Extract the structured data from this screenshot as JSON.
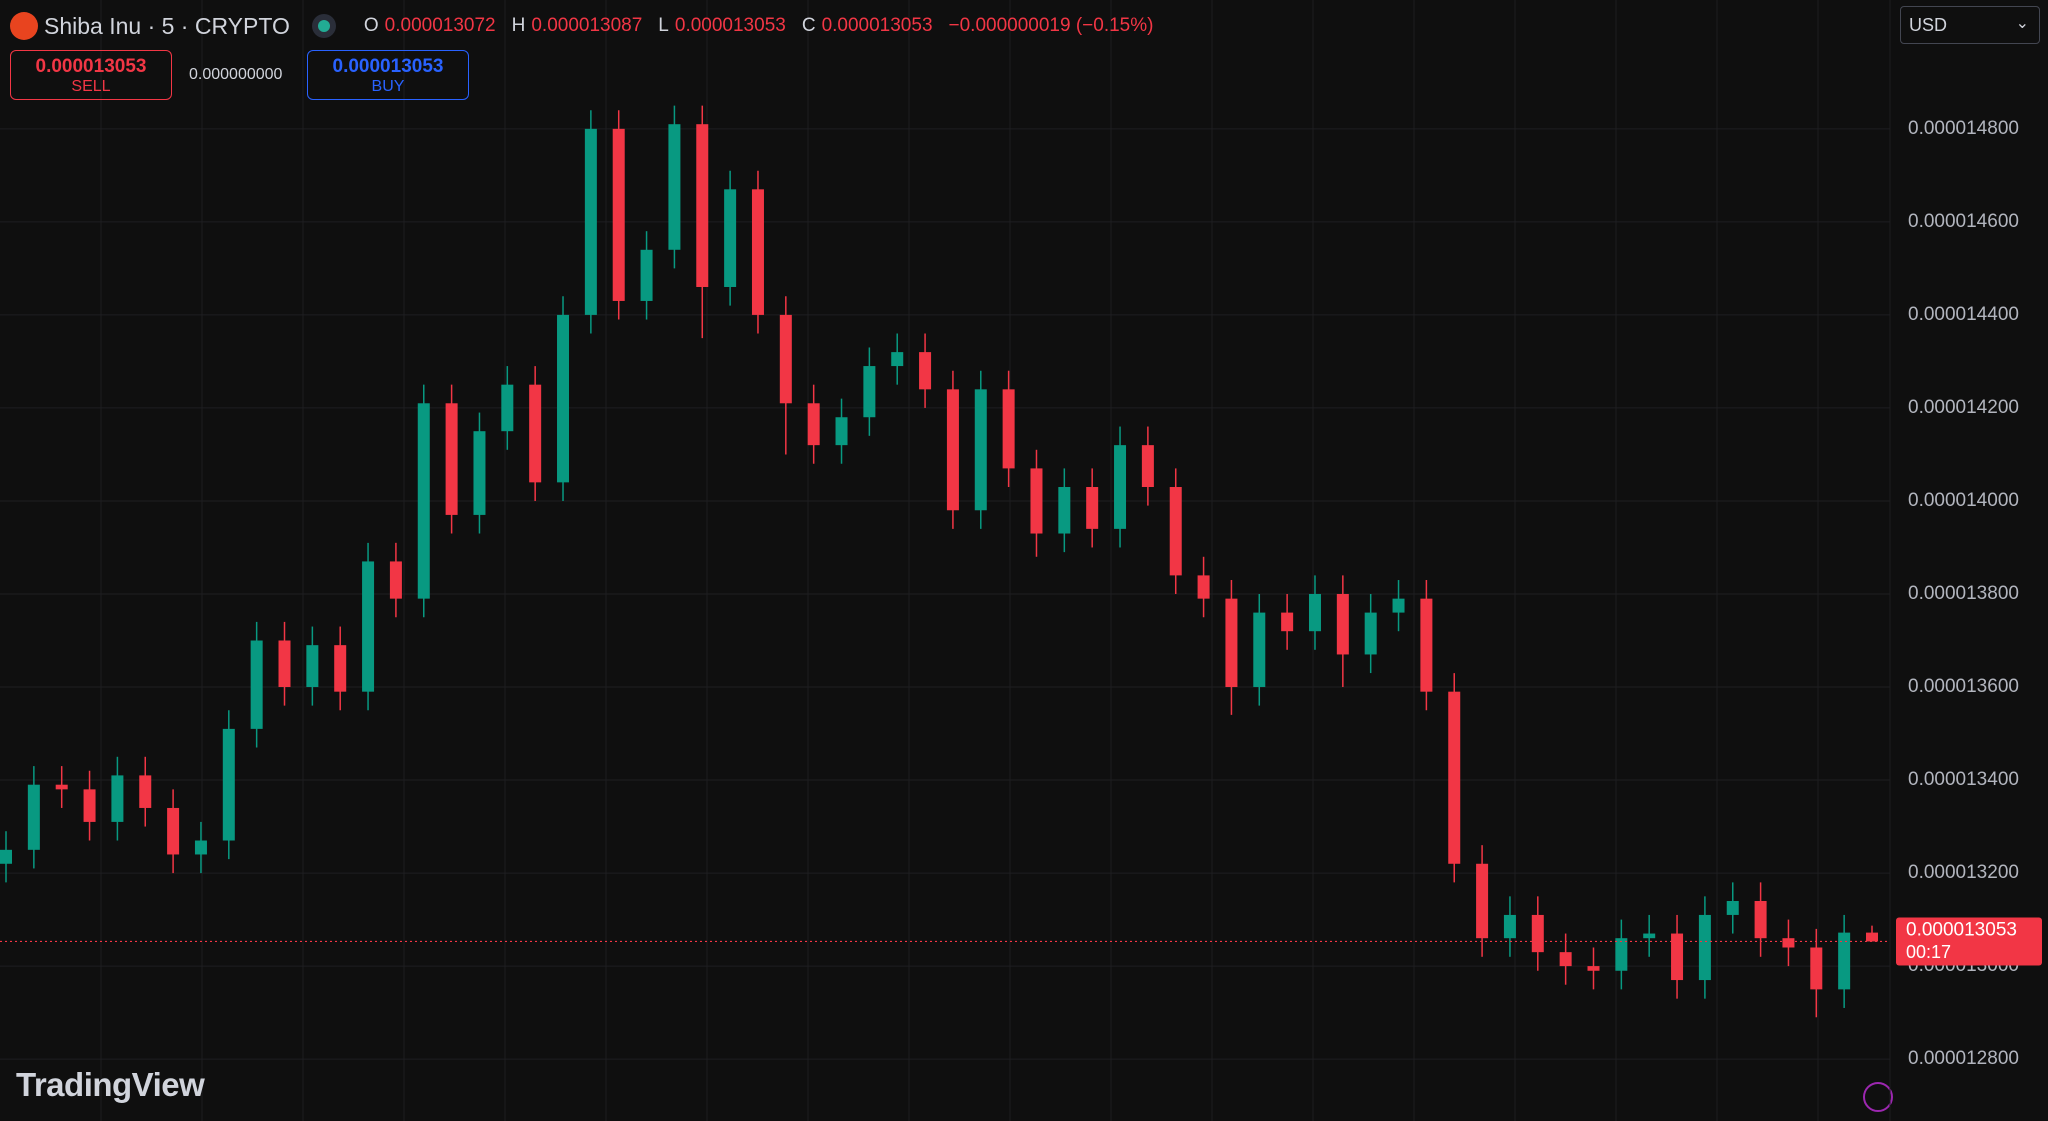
{
  "header": {
    "symbol": "Shiba Inu · 5 · CRYPTO",
    "ohlc_labels": [
      "O",
      "H",
      "L",
      "C"
    ],
    "change": "−0.000000019 (−0.15%)"
  },
  "trade": {
    "sell_price": "0.000013053",
    "sell_label": "SELL",
    "spread": "0.000000000",
    "buy_price": "0.000013053",
    "buy_label": "BUY"
  },
  "currency": "USD",
  "logo": "TradingView",
  "chart_data": {
    "type": "candlestick",
    "up_color": "#089981",
    "down_color": "#f23645",
    "grid": true,
    "ylim": [
      1.2667e-05,
      1.5077e-05
    ],
    "yticks": [
      {
        "value": 1.28e-05,
        "label": "0.000012800"
      },
      {
        "value": 1.3e-05,
        "label": "0.000013000"
      },
      {
        "value": 1.32e-05,
        "label": "0.000013200"
      },
      {
        "value": 1.34e-05,
        "label": "0.000013400"
      },
      {
        "value": 1.36e-05,
        "label": "0.000013600"
      },
      {
        "value": 1.38e-05,
        "label": "0.000013800"
      },
      {
        "value": 1.4e-05,
        "label": "0.000014000"
      },
      {
        "value": 1.42e-05,
        "label": "0.000014200"
      },
      {
        "value": 1.44e-05,
        "label": "0.000014400"
      },
      {
        "value": 1.46e-05,
        "label": "0.000014600"
      },
      {
        "value": 1.48e-05,
        "label": "0.000014800"
      }
    ],
    "open": [
      1.322e-05,
      1.325e-05,
      1.339e-05,
      1.338e-05,
      1.331e-05,
      1.341e-05,
      1.334e-05,
      1.324e-05,
      1.327e-05,
      1.351e-05,
      1.37e-05,
      1.36e-05,
      1.369e-05,
      1.359e-05,
      1.387e-05,
      1.379e-05,
      1.421e-05,
      1.397e-05,
      1.415e-05,
      1.425e-05,
      1.404e-05,
      1.44e-05,
      1.48e-05,
      1.443e-05,
      1.454e-05,
      1.481e-05,
      1.446e-05,
      1.467e-05,
      1.44e-05,
      1.421e-05,
      1.412e-05,
      1.418e-05,
      1.429e-05,
      1.432e-05,
      1.424e-05,
      1.398e-05,
      1.424e-05,
      1.407e-05,
      1.393e-05,
      1.403e-05,
      1.394e-05,
      1.412e-05,
      1.403e-05,
      1.384e-05,
      1.379e-05,
      1.36e-05,
      1.376e-05,
      1.372e-05,
      1.38e-05,
      1.367e-05,
      1.376e-05,
      1.379e-05,
      1.359e-05,
      1.322e-05,
      1.306e-05,
      1.311e-05,
      1.303e-05,
      1.3e-05,
      1.299e-05,
      1.306e-05,
      1.307e-05,
      1.297e-05,
      1.311e-05,
      1.314e-05,
      1.306e-05,
      1.304e-05,
      1.295e-05,
      1.3072e-05
    ],
    "high": [
      1.329e-05,
      1.343e-05,
      1.343e-05,
      1.342e-05,
      1.345e-05,
      1.345e-05,
      1.338e-05,
      1.331e-05,
      1.355e-05,
      1.374e-05,
      1.374e-05,
      1.373e-05,
      1.373e-05,
      1.391e-05,
      1.391e-05,
      1.425e-05,
      1.425e-05,
      1.419e-05,
      1.429e-05,
      1.429e-05,
      1.444e-05,
      1.484e-05,
      1.484e-05,
      1.458e-05,
      1.485e-05,
      1.485e-05,
      1.471e-05,
      1.471e-05,
      1.444e-05,
      1.425e-05,
      1.422e-05,
      1.433e-05,
      1.436e-05,
      1.436e-05,
      1.428e-05,
      1.428e-05,
      1.428e-05,
      1.411e-05,
      1.407e-05,
      1.407e-05,
      1.416e-05,
      1.416e-05,
      1.407e-05,
      1.388e-05,
      1.383e-05,
      1.38e-05,
      1.38e-05,
      1.384e-05,
      1.384e-05,
      1.38e-05,
      1.383e-05,
      1.383e-05,
      1.363e-05,
      1.326e-05,
      1.315e-05,
      1.315e-05,
      1.307e-05,
      1.304e-05,
      1.31e-05,
      1.311e-05,
      1.311e-05,
      1.315e-05,
      1.318e-05,
      1.318e-05,
      1.31e-05,
      1.308e-05,
      1.311e-05,
      1.3087e-05
    ],
    "low": [
      1.318e-05,
      1.321e-05,
      1.334e-05,
      1.327e-05,
      1.327e-05,
      1.33e-05,
      1.32e-05,
      1.32e-05,
      1.323e-05,
      1.347e-05,
      1.356e-05,
      1.356e-05,
      1.355e-05,
      1.355e-05,
      1.375e-05,
      1.375e-05,
      1.393e-05,
      1.393e-05,
      1.411e-05,
      1.4e-05,
      1.4e-05,
      1.436e-05,
      1.439e-05,
      1.439e-05,
      1.45e-05,
      1.435e-05,
      1.442e-05,
      1.436e-05,
      1.41e-05,
      1.408e-05,
      1.408e-05,
      1.414e-05,
      1.425e-05,
      1.42e-05,
      1.394e-05,
      1.394e-05,
      1.403e-05,
      1.388e-05,
      1.389e-05,
      1.39e-05,
      1.39e-05,
      1.399e-05,
      1.38e-05,
      1.375e-05,
      1.354e-05,
      1.356e-05,
      1.368e-05,
      1.368e-05,
      1.36e-05,
      1.363e-05,
      1.372e-05,
      1.355e-05,
      1.318e-05,
      1.302e-05,
      1.302e-05,
      1.299e-05,
      1.296e-05,
      1.295e-05,
      1.295e-05,
      1.302e-05,
      1.293e-05,
      1.293e-05,
      1.307e-05,
      1.302e-05,
      1.3e-05,
      1.289e-05,
      1.291e-05,
      1.3053e-05
    ],
    "close": [
      1.325e-05,
      1.339e-05,
      1.338e-05,
      1.331e-05,
      1.341e-05,
      1.334e-05,
      1.324e-05,
      1.327e-05,
      1.351e-05,
      1.37e-05,
      1.36e-05,
      1.369e-05,
      1.359e-05,
      1.387e-05,
      1.379e-05,
      1.421e-05,
      1.397e-05,
      1.415e-05,
      1.425e-05,
      1.404e-05,
      1.44e-05,
      1.48e-05,
      1.443e-05,
      1.454e-05,
      1.481e-05,
      1.446e-05,
      1.467e-05,
      1.44e-05,
      1.421e-05,
      1.412e-05,
      1.418e-05,
      1.429e-05,
      1.432e-05,
      1.424e-05,
      1.398e-05,
      1.424e-05,
      1.407e-05,
      1.393e-05,
      1.403e-05,
      1.394e-05,
      1.412e-05,
      1.403e-05,
      1.384e-05,
      1.379e-05,
      1.36e-05,
      1.376e-05,
      1.372e-05,
      1.38e-05,
      1.367e-05,
      1.376e-05,
      1.379e-05,
      1.359e-05,
      1.322e-05,
      1.306e-05,
      1.311e-05,
      1.303e-05,
      1.3e-05,
      1.299e-05,
      1.306e-05,
      1.307e-05,
      1.297e-05,
      1.311e-05,
      1.314e-05,
      1.306e-05,
      1.304e-05,
      1.295e-05,
      1.3072e-05,
      1.3053e-05
    ],
    "countdown": "00:17"
  }
}
